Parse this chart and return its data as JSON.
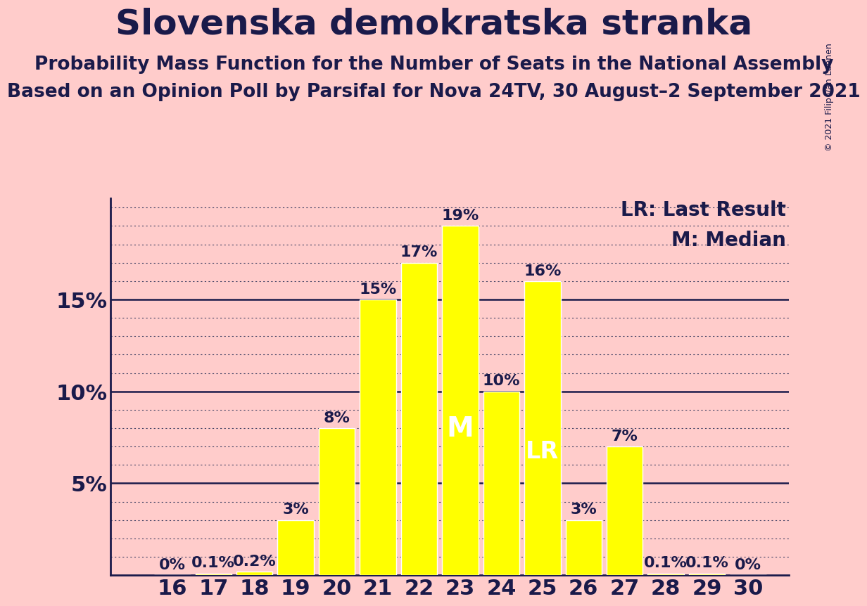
{
  "title": "Slovenska demokratska stranka",
  "subtitle1": "Probability Mass Function for the Number of Seats in the National Assembly",
  "subtitle2": "Based on an Opinion Poll by Parsifal for Nova 24TV, 30 August–2 September 2021",
  "copyright": "© 2021 Filip van Laenen",
  "seats": [
    16,
    17,
    18,
    19,
    20,
    21,
    22,
    23,
    24,
    25,
    26,
    27,
    28,
    29,
    30
  ],
  "probabilities": [
    0.0,
    0.1,
    0.2,
    3.0,
    8.0,
    15.0,
    17.0,
    19.0,
    10.0,
    16.0,
    3.0,
    7.0,
    0.1,
    0.1,
    0.0
  ],
  "bar_color": "#FFFF00",
  "bar_edge_color": "#FFFFFF",
  "background_color": "#FFCCCB",
  "text_color": "#1a1a4a",
  "median_seat": 23,
  "last_result_seat": 25,
  "legend_lr": "LR: Last Result",
  "legend_m": "M: Median",
  "major_yticks": [
    0,
    5,
    10,
    15
  ],
  "minor_ytick_step": 1,
  "ylim": [
    0,
    20.5
  ],
  "title_fontsize": 36,
  "subtitle_fontsize": 19,
  "tick_fontsize": 22,
  "bar_label_fontsize": 16,
  "legend_fontsize": 20,
  "copyright_fontsize": 9,
  "m_fontsize": 28,
  "lr_fontsize": 24
}
